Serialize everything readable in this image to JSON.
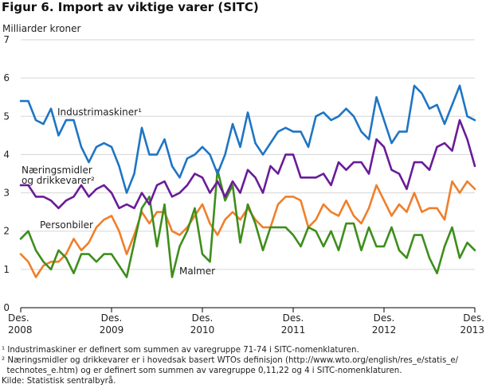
{
  "title": "Figur 6. Import av viktige varer (SITC)",
  "chart_data": {
    "type": "line",
    "ylabel": "Milliarder kroner",
    "ylim": [
      0,
      7
    ],
    "yticks": [
      0,
      1,
      2,
      3,
      4,
      5,
      6,
      7
    ],
    "x_months": 61,
    "xtick_labels": [
      {
        "index": 0,
        "line1": "Des.",
        "line2": "2008"
      },
      {
        "index": 12,
        "line1": "Des.",
        "line2": "2009"
      },
      {
        "index": 24,
        "line1": "Des.",
        "line2": "2010"
      },
      {
        "index": 36,
        "line1": "Des.",
        "line2": "2011"
      },
      {
        "index": 48,
        "line1": "Des.",
        "line2": "2012"
      },
      {
        "index": 60,
        "line1": "Des.",
        "line2": "2013"
      }
    ],
    "series": [
      {
        "name": "Industrimaskiner",
        "label_lines": [
          "Industrimaskiner¹"
        ],
        "color": "#1f75c4",
        "values": [
          5.4,
          5.4,
          4.9,
          4.8,
          5.2,
          4.5,
          4.9,
          4.9,
          4.2,
          3.8,
          4.2,
          4.3,
          4.2,
          3.7,
          3.0,
          3.5,
          4.7,
          4.0,
          4.0,
          4.4,
          3.7,
          3.4,
          3.9,
          4.0,
          4.2,
          4.0,
          3.5,
          4.0,
          4.8,
          4.2,
          5.1,
          4.3,
          4.0,
          4.3,
          4.6,
          4.7,
          4.6,
          4.6,
          4.2,
          5.0,
          5.1,
          4.9,
          5.0,
          5.2,
          5.0,
          4.6,
          4.4,
          5.5,
          4.9,
          4.3,
          4.6,
          4.6,
          5.8,
          5.6,
          5.2,
          5.3,
          4.8,
          5.3,
          5.8,
          5.0,
          4.9
        ]
      },
      {
        "name": "Næringsmidler og drikkevarer",
        "label_lines": [
          "Næringsmidler",
          "og drikkevarer²"
        ],
        "color": "#6a1b9a",
        "values": [
          3.2,
          3.2,
          2.9,
          2.9,
          2.8,
          2.6,
          2.8,
          2.9,
          3.2,
          2.9,
          3.1,
          3.2,
          3.0,
          2.6,
          2.7,
          2.6,
          3.0,
          2.7,
          3.2,
          3.3,
          2.9,
          3.0,
          3.2,
          3.5,
          3.4,
          3.0,
          3.3,
          2.9,
          3.3,
          3.0,
          3.6,
          3.4,
          3.0,
          3.7,
          3.5,
          4.0,
          4.0,
          3.4,
          3.4,
          3.4,
          3.5,
          3.2,
          3.8,
          3.6,
          3.8,
          3.8,
          3.5,
          4.4,
          4.2,
          3.6,
          3.5,
          3.1,
          3.8,
          3.8,
          3.6,
          4.2,
          4.3,
          4.1,
          4.9,
          4.4,
          3.7
        ]
      },
      {
        "name": "Personbiler",
        "label_lines": [
          "Personbiler"
        ],
        "color": "#f07f2a",
        "values": [
          1.4,
          1.2,
          0.8,
          1.1,
          1.2,
          1.2,
          1.4,
          1.8,
          1.5,
          1.7,
          2.1,
          2.3,
          2.4,
          2.0,
          1.4,
          1.9,
          2.5,
          2.2,
          2.5,
          2.5,
          2.0,
          1.9,
          2.1,
          2.4,
          2.7,
          2.2,
          1.9,
          2.3,
          2.5,
          2.3,
          2.6,
          2.3,
          2.1,
          2.1,
          2.7,
          2.9,
          2.9,
          2.8,
          2.1,
          2.3,
          2.7,
          2.5,
          2.4,
          2.8,
          2.4,
          2.2,
          2.6,
          3.2,
          2.8,
          2.4,
          2.7,
          2.5,
          3.0,
          2.5,
          2.6,
          2.6,
          2.3,
          3.3,
          3.0,
          3.3,
          3.1
        ]
      },
      {
        "name": "Malmer",
        "label_lines": [
          "Malmer"
        ],
        "color": "#3e8e1c",
        "values": [
          1.8,
          2.0,
          1.5,
          1.2,
          1.0,
          1.5,
          1.3,
          0.9,
          1.4,
          1.4,
          1.2,
          1.4,
          1.4,
          1.1,
          0.8,
          1.7,
          2.6,
          2.9,
          1.6,
          2.7,
          0.8,
          1.6,
          2.0,
          2.6,
          1.4,
          1.2,
          3.6,
          2.8,
          3.2,
          1.7,
          2.7,
          2.2,
          1.5,
          2.1,
          2.1,
          2.1,
          1.9,
          1.6,
          2.1,
          2.0,
          1.6,
          2.0,
          1.5,
          2.2,
          2.2,
          1.5,
          2.1,
          1.6,
          1.6,
          2.1,
          1.5,
          1.3,
          1.9,
          1.9,
          1.3,
          0.9,
          1.6,
          2.1,
          1.3,
          1.7,
          1.5
        ]
      }
    ]
  },
  "footnotes": [
    "¹ Industrimaskiner er definert som summen av varegruppe 71-74 i SITC-nomenklaturen.",
    "² Næringsmidler og drikkevarer er i hovedsak basert WTOs definisjon (http://www.wto.org/english/res_e/statis_e/",
    "  technotes_e.htm) og er definert som summen av varegruppe 0,11,22 og 4 i SITC-nomenklaturen.",
    "Kilde: Statistisk sentralbyrå."
  ]
}
